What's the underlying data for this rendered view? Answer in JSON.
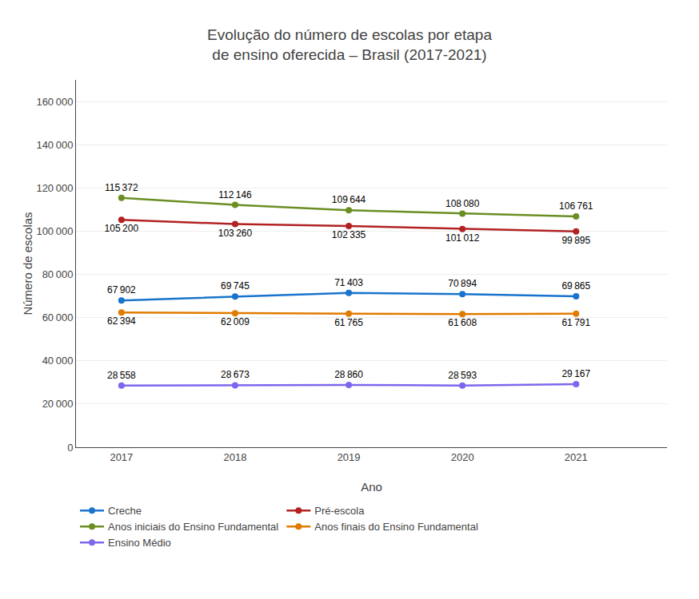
{
  "chart_data": {
    "type": "line",
    "title": "Evolução do número de escolas por etapa\nde ensino oferecida – Brasil (2017-2021)",
    "xlabel": "Ano",
    "ylabel": "Número de escolas",
    "x": [
      2017,
      2018,
      2019,
      2020,
      2021
    ],
    "xlim": [
      2016.6,
      2021.8
    ],
    "xticks": [
      2017,
      2018,
      2019,
      2020,
      2021
    ],
    "ylim": [
      0,
      170000
    ],
    "yticks": [
      0,
      {
        "value": 20000,
        "label": "20 000"
      },
      {
        "value": 40000,
        "label": "40 000"
      },
      {
        "value": 60000,
        "label": "60 000"
      },
      {
        "value": 80000,
        "label": "80 000"
      },
      {
        "value": 100000,
        "label": "100 000"
      },
      {
        "value": 120000,
        "label": "120 000"
      },
      {
        "value": 140000,
        "label": "140 000"
      },
      {
        "value": 160000,
        "label": "160 000"
      }
    ],
    "grid": true,
    "legend": "bottom",
    "marker": "circle",
    "data_labels": true,
    "series": [
      {
        "name": "Creche",
        "color": "#1874cd",
        "values": [
          67902,
          69745,
          71403,
          70894,
          69865
        ],
        "value_labels": [
          "67 902",
          "69 745",
          "71 403",
          "70 894",
          "69 865"
        ]
      },
      {
        "name": "Pré-escola",
        "color": "#b22222",
        "values": [
          105200,
          103260,
          102335,
          101012,
          99895
        ],
        "value_labels": [
          "105 200",
          "103 260",
          "102 335",
          "101 012",
          "99 895"
        ]
      },
      {
        "name": "Anos iniciais do Ensino Fundamental",
        "color": "#6b8e23",
        "values": [
          115372,
          112146,
          109644,
          108080,
          106761
        ],
        "value_labels": [
          "115 372",
          "112 146",
          "109 644",
          "108 080",
          "106 761"
        ]
      },
      {
        "name": "Anos finais do Ensino Fundamental",
        "color": "#e07b00",
        "values": [
          62394,
          62009,
          61765,
          61608,
          61791
        ],
        "value_labels": [
          "62 394",
          "62 009",
          "61 765",
          "61 608",
          "61 791"
        ]
      },
      {
        "name": "Ensino Médio",
        "color": "#7b68ee",
        "values": [
          28558,
          28673,
          28860,
          28593,
          29167
        ],
        "value_labels": [
          "28 558",
          "28 673",
          "28 860",
          "28 593",
          "29 167"
        ]
      }
    ]
  }
}
